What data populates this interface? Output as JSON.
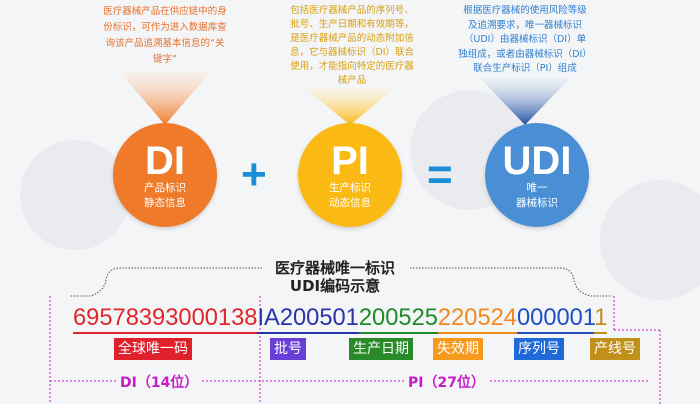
{
  "top_texts": {
    "di": [
      "医疗器械产品在供应链中的身",
      "份标识，可作为进入数据库查",
      "询该产品追溯基本信息的“关",
      "键字”"
    ],
    "pi": [
      "包括医疗器械产品的序列号、",
      "批号、生产日期和有效期等，",
      "是医疗器械产品的动态附加信",
      "息，它与器械标识（DI）联合",
      "使用，才能指向特定的医疗器",
      "械产品"
    ],
    "udi": [
      "根据医疗器械的使用风险等级",
      "及追溯要求，唯一器械标识",
      "（UDI）由器械标识（DI）单",
      "独组成，或者由器械标识（DI）",
      "联合生产标识（PI）组成"
    ]
  },
  "circles": {
    "di": {
      "big": "DI",
      "line1": "产品标识",
      "line2": "静态信息",
      "color": "#ee7a2a"
    },
    "pi": {
      "big": "PI",
      "line1": "生产标识",
      "line2": "动态信息",
      "color": "#fbb914"
    },
    "udi": {
      "big": "UDI",
      "line1": "唯一",
      "line2": "器械标识",
      "color": "#4a8fd6"
    }
  },
  "operators": {
    "plus": "+",
    "equals": "="
  },
  "title": {
    "line1": "医疗器械唯一标识",
    "line2": "UDI编码示意"
  },
  "code_segments": [
    {
      "text": "69578393000138",
      "color": "#e0262b"
    },
    {
      "text": "IA200501",
      "color": "#2a34a8"
    },
    {
      "text": "200525",
      "color": "#1f8a2a"
    },
    {
      "text": "220524",
      "color": "#f08a1c"
    },
    {
      "text": "000001",
      "color": "#1f4fc0"
    },
    {
      "text": "1",
      "color": "#c0901a"
    }
  ],
  "labels": [
    {
      "text": "全球唯一码",
      "color": "#e0202a"
    },
    {
      "text": "批号",
      "color": "#6a3fd8"
    },
    {
      "text": "生产日期",
      "color": "#2a8a2a"
    },
    {
      "text": "失效期",
      "color": "#f59a1c"
    },
    {
      "text": "序列号",
      "color": "#1f6ad8"
    },
    {
      "text": "产线号",
      "color": "#c0901a"
    }
  ],
  "sections": {
    "di": "DI（14位）",
    "pi": "PI（27位）"
  }
}
